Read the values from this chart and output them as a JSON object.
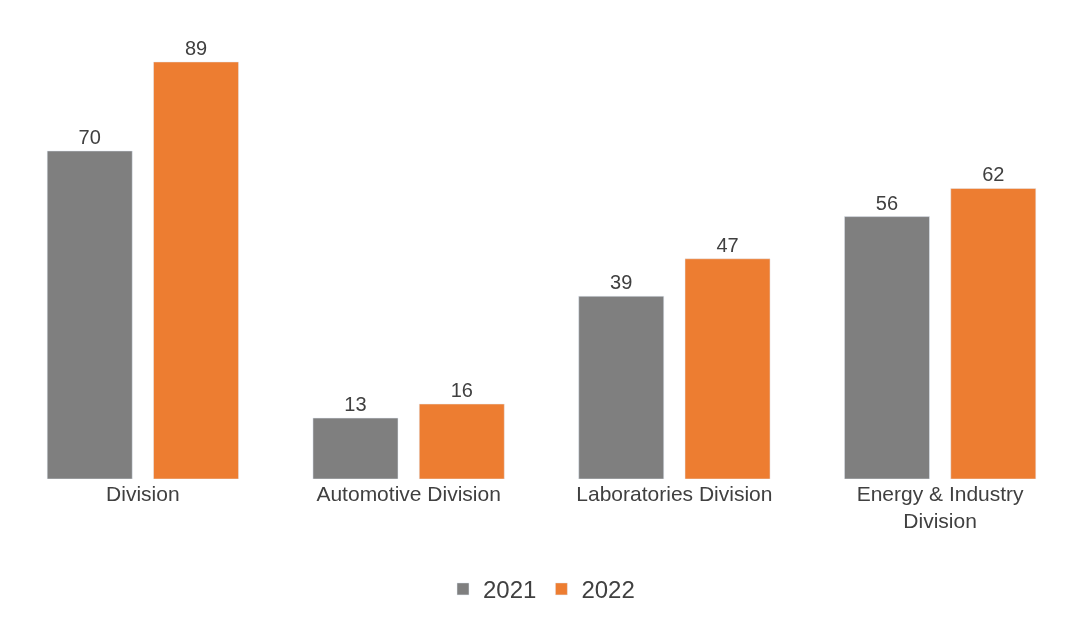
{
  "chart_data": {
    "type": "bar",
    "categories": [
      "Division",
      "Automotive Division",
      "Laboratories Division",
      "Energy & Industry Division"
    ],
    "series": [
      {
        "name": "2021",
        "color": "#7f7f7f",
        "values": [
          70,
          13,
          39,
          56
        ]
      },
      {
        "name": "2022",
        "color": "#ed7d31",
        "values": [
          89,
          16,
          47,
          62
        ]
      }
    ],
    "data_labels": true,
    "legend": "bottom",
    "tick_labels": "x"
  }
}
